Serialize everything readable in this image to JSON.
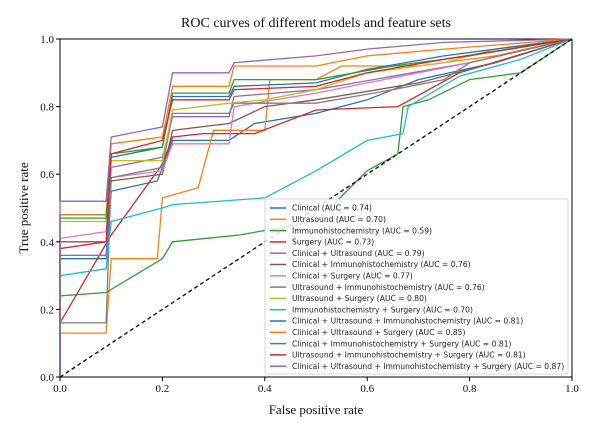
{
  "chart_data": {
    "type": "line",
    "title": "ROC curves of different models and feature sets",
    "xlabel": "False positive rate",
    "ylabel": "True positive rate",
    "xlim": [
      0,
      1
    ],
    "ylim": [
      0,
      1
    ],
    "xticks": [
      "0.0",
      "0.2",
      "0.4",
      "0.6",
      "0.8",
      "1.0"
    ],
    "yticks": [
      "0.0",
      "0.2",
      "0.4",
      "0.6",
      "0.8",
      "1.0"
    ],
    "grid": false,
    "legend_position": "lower-right",
    "reference_line": {
      "style": "dashed",
      "color": "#000000",
      "points": [
        [
          0,
          0
        ],
        [
          1,
          1
        ]
      ]
    },
    "series": [
      {
        "name": "Clinical (AUC = 0.74)",
        "color": "#1f77b4",
        "points": [
          [
            0,
            0
          ],
          [
            0,
            0.35
          ],
          [
            0.09,
            0.35
          ],
          [
            0.1,
            0.55
          ],
          [
            0.19,
            0.58
          ],
          [
            0.22,
            0.7
          ],
          [
            0.33,
            0.7
          ],
          [
            0.38,
            0.75
          ],
          [
            0.5,
            0.78
          ],
          [
            0.6,
            0.82
          ],
          [
            0.7,
            0.88
          ],
          [
            0.85,
            0.93
          ],
          [
            1,
            1
          ]
        ]
      },
      {
        "name": "Ultrasound (AUC = 0.70)",
        "color": "#ff7f0e",
        "points": [
          [
            0,
            0
          ],
          [
            0,
            0.13
          ],
          [
            0.09,
            0.13
          ],
          [
            0.1,
            0.35
          ],
          [
            0.19,
            0.35
          ],
          [
            0.2,
            0.53
          ],
          [
            0.27,
            0.56
          ],
          [
            0.3,
            0.73
          ],
          [
            0.4,
            0.73
          ],
          [
            0.41,
            0.88
          ],
          [
            0.5,
            0.88
          ],
          [
            0.55,
            0.92
          ],
          [
            0.7,
            0.92
          ],
          [
            0.85,
            0.95
          ],
          [
            1,
            1
          ]
        ]
      },
      {
        "name": "Immunohistochemistry (AUC = 0.59)",
        "color": "#2ca02c",
        "points": [
          [
            0,
            0
          ],
          [
            0,
            0.24
          ],
          [
            0.09,
            0.25
          ],
          [
            0.2,
            0.35
          ],
          [
            0.22,
            0.4
          ],
          [
            0.35,
            0.42
          ],
          [
            0.5,
            0.46
          ],
          [
            0.6,
            0.61
          ],
          [
            0.66,
            0.66
          ],
          [
            0.67,
            0.8
          ],
          [
            0.72,
            0.82
          ],
          [
            0.8,
            0.88
          ],
          [
            0.9,
            0.9
          ],
          [
            1,
            1
          ]
        ]
      },
      {
        "name": "Surgery (AUC = 0.73)",
        "color": "#d62728",
        "points": [
          [
            0,
            0
          ],
          [
            0,
            0.16
          ],
          [
            0.1,
            0.42
          ],
          [
            0.2,
            0.63
          ],
          [
            0.22,
            0.71
          ],
          [
            0.28,
            0.72
          ],
          [
            0.38,
            0.72
          ],
          [
            0.5,
            0.79
          ],
          [
            0.66,
            0.8
          ],
          [
            0.78,
            0.9
          ],
          [
            1,
            1
          ]
        ]
      },
      {
        "name": "Clinical + Ultrasound (AUC = 0.79)",
        "color": "#9467bd",
        "points": [
          [
            0,
            0
          ],
          [
            0,
            0.36
          ],
          [
            0.09,
            0.36
          ],
          [
            0.1,
            0.62
          ],
          [
            0.2,
            0.65
          ],
          [
            0.22,
            0.77
          ],
          [
            0.33,
            0.77
          ],
          [
            0.34,
            0.83
          ],
          [
            0.5,
            0.85
          ],
          [
            0.65,
            0.89
          ],
          [
            0.8,
            0.93
          ],
          [
            1,
            1
          ]
        ]
      },
      {
        "name": "Clinical + Immunohistochemistry (AUC = 0.76)",
        "color": "#8c564b",
        "points": [
          [
            0,
            0
          ],
          [
            0,
            0.4
          ],
          [
            0.09,
            0.4
          ],
          [
            0.1,
            0.58
          ],
          [
            0.2,
            0.6
          ],
          [
            0.22,
            0.73
          ],
          [
            0.33,
            0.75
          ],
          [
            0.4,
            0.8
          ],
          [
            0.5,
            0.82
          ],
          [
            0.7,
            0.87
          ],
          [
            0.85,
            0.93
          ],
          [
            1,
            1
          ]
        ]
      },
      {
        "name": "Clinical + Surgery (AUC = 0.77)",
        "color": "#e377c2",
        "points": [
          [
            0,
            0
          ],
          [
            0,
            0.41
          ],
          [
            0.09,
            0.43
          ],
          [
            0.1,
            0.59
          ],
          [
            0.2,
            0.61
          ],
          [
            0.22,
            0.69
          ],
          [
            0.33,
            0.69
          ],
          [
            0.34,
            0.8
          ],
          [
            0.5,
            0.84
          ],
          [
            0.6,
            0.87
          ],
          [
            0.8,
            0.93
          ],
          [
            1,
            1
          ]
        ]
      },
      {
        "name": "Ultrasound + Immunohistochemistry (AUC = 0.76)",
        "color": "#7f7f7f",
        "points": [
          [
            0,
            0
          ],
          [
            0,
            0.16
          ],
          [
            0.09,
            0.16
          ],
          [
            0.1,
            0.59
          ],
          [
            0.2,
            0.62
          ],
          [
            0.22,
            0.78
          ],
          [
            0.33,
            0.78
          ],
          [
            0.34,
            0.81
          ],
          [
            0.5,
            0.81
          ],
          [
            0.65,
            0.85
          ],
          [
            0.75,
            0.88
          ],
          [
            0.8,
            0.93
          ],
          [
            1,
            1
          ]
        ]
      },
      {
        "name": "Ultrasound + Surgery (AUC = 0.80)",
        "color": "#bcbd22",
        "points": [
          [
            0,
            0
          ],
          [
            0,
            0.46
          ],
          [
            0.09,
            0.46
          ],
          [
            0.1,
            0.64
          ],
          [
            0.2,
            0.64
          ],
          [
            0.22,
            0.79
          ],
          [
            0.33,
            0.81
          ],
          [
            0.4,
            0.82
          ],
          [
            0.5,
            0.85
          ],
          [
            0.6,
            0.9
          ],
          [
            0.75,
            0.93
          ],
          [
            0.85,
            0.97
          ],
          [
            1,
            1
          ]
        ]
      },
      {
        "name": "Immunohistochemistry + Surgery (AUC = 0.70)",
        "color": "#17becf",
        "points": [
          [
            0,
            0
          ],
          [
            0,
            0.3
          ],
          [
            0.09,
            0.32
          ],
          [
            0.1,
            0.46
          ],
          [
            0.2,
            0.5
          ],
          [
            0.22,
            0.51
          ],
          [
            0.4,
            0.53
          ],
          [
            0.5,
            0.61
          ],
          [
            0.6,
            0.7
          ],
          [
            0.67,
            0.72
          ],
          [
            0.68,
            0.8
          ],
          [
            0.78,
            0.89
          ],
          [
            0.9,
            0.94
          ],
          [
            1,
            1
          ]
        ]
      },
      {
        "name": "Clinical + Ultrasound + Immunohistochemistry (AUC = 0.81)",
        "color": "#1f77b4",
        "points": [
          [
            0,
            0
          ],
          [
            0,
            0.48
          ],
          [
            0.09,
            0.48
          ],
          [
            0.1,
            0.65
          ],
          [
            0.2,
            0.68
          ],
          [
            0.22,
            0.83
          ],
          [
            0.33,
            0.83
          ],
          [
            0.34,
            0.86
          ],
          [
            0.5,
            0.87
          ],
          [
            0.6,
            0.91
          ],
          [
            0.75,
            0.95
          ],
          [
            1,
            1
          ]
        ]
      },
      {
        "name": "Clinical + Ultrasound + Surgery (AUC = 0.85)",
        "color": "#ff7f0e",
        "points": [
          [
            0,
            0
          ],
          [
            0,
            0.48
          ],
          [
            0.09,
            0.48
          ],
          [
            0.1,
            0.69
          ],
          [
            0.2,
            0.71
          ],
          [
            0.22,
            0.86
          ],
          [
            0.33,
            0.86
          ],
          [
            0.34,
            0.92
          ],
          [
            0.5,
            0.92
          ],
          [
            0.6,
            0.95
          ],
          [
            0.75,
            0.97
          ],
          [
            1,
            1
          ]
        ]
      },
      {
        "name": "Clinical + Immunohistochemistry + Surgery (AUC = 0.81)",
        "color": "#2ca02c",
        "points": [
          [
            0,
            0
          ],
          [
            0,
            0.47
          ],
          [
            0.09,
            0.47
          ],
          [
            0.1,
            0.66
          ],
          [
            0.2,
            0.68
          ],
          [
            0.22,
            0.84
          ],
          [
            0.33,
            0.84
          ],
          [
            0.34,
            0.88
          ],
          [
            0.5,
            0.88
          ],
          [
            0.65,
            0.92
          ],
          [
            0.8,
            0.95
          ],
          [
            1,
            1
          ]
        ]
      },
      {
        "name": "Ultrasound + Immunohistochemistry + Surgery (AUC = 0.81)",
        "color": "#d62728",
        "points": [
          [
            0,
            0
          ],
          [
            0,
            0.38
          ],
          [
            0.09,
            0.4
          ],
          [
            0.1,
            0.66
          ],
          [
            0.2,
            0.7
          ],
          [
            0.22,
            0.82
          ],
          [
            0.33,
            0.82
          ],
          [
            0.34,
            0.85
          ],
          [
            0.5,
            0.86
          ],
          [
            0.6,
            0.9
          ],
          [
            0.75,
            0.94
          ],
          [
            1,
            1
          ]
        ]
      },
      {
        "name": "Clinical + Ultrasound + Immunohistochemistry + Surgery (AUC = 0.87)",
        "color": "#9467bd",
        "points": [
          [
            0,
            0
          ],
          [
            0,
            0.52
          ],
          [
            0.09,
            0.52
          ],
          [
            0.1,
            0.71
          ],
          [
            0.2,
            0.74
          ],
          [
            0.22,
            0.9
          ],
          [
            0.33,
            0.9
          ],
          [
            0.34,
            0.93
          ],
          [
            0.5,
            0.95
          ],
          [
            0.6,
            0.97
          ],
          [
            0.75,
            0.99
          ],
          [
            1,
            1
          ]
        ]
      }
    ]
  }
}
